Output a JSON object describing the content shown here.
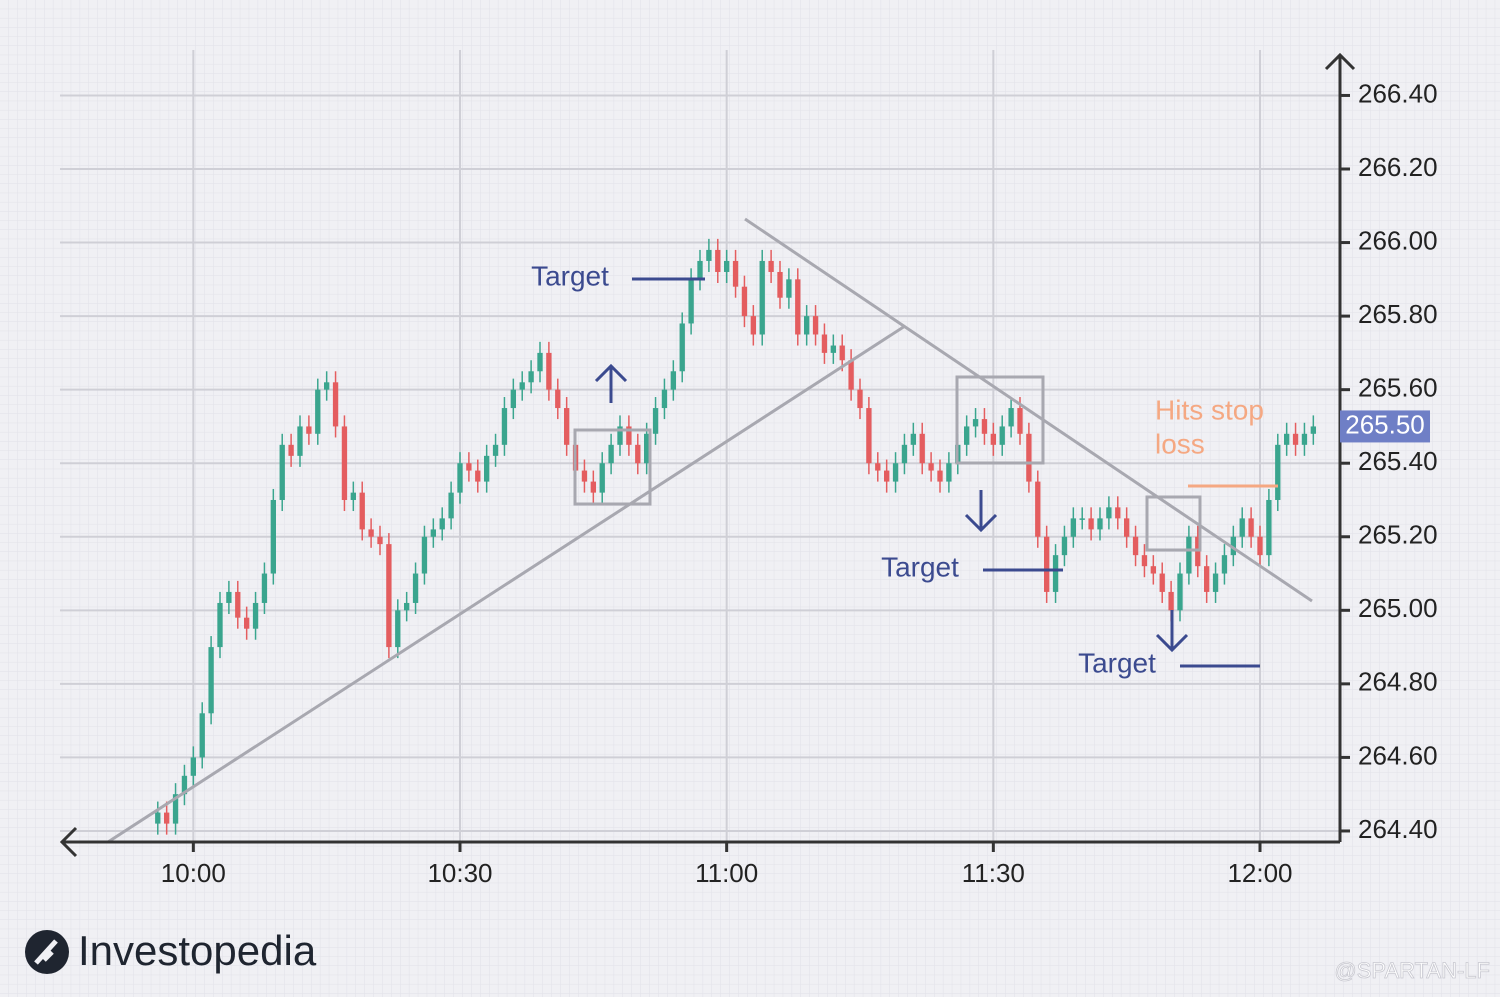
{
  "chart_data": {
    "type": "candlestick",
    "xlim": [
      585,
      729
    ],
    "xticks": [
      {
        "value": 600,
        "label": "10:00"
      },
      {
        "value": 630,
        "label": "10:30"
      },
      {
        "value": 660,
        "label": "11:00"
      },
      {
        "value": 690,
        "label": "11:30"
      },
      {
        "value": 720,
        "label": "12:00"
      }
    ],
    "ylim": [
      264.37,
      266.51
    ],
    "yticks": [
      {
        "value": 264.4,
        "label": "264.40"
      },
      {
        "value": 264.6,
        "label": "264.60"
      },
      {
        "value": 264.8,
        "label": "264.80"
      },
      {
        "value": 265.0,
        "label": "265.00"
      },
      {
        "value": 265.2,
        "label": "265.20"
      },
      {
        "value": 265.4,
        "label": "265.40"
      },
      {
        "value": 265.6,
        "label": "265.60"
      },
      {
        "value": 265.8,
        "label": "265.80"
      },
      {
        "value": 266.0,
        "label": "266.00"
      },
      {
        "value": 266.2,
        "label": "266.20"
      },
      {
        "value": 266.4,
        "label": "266.40"
      }
    ],
    "grid": true,
    "up_color": "#3aa58e",
    "down_color": "#e45d5f",
    "candles": {
      "x": [
        596,
        597,
        598,
        599,
        600,
        601,
        602,
        603,
        604,
        605,
        606,
        607,
        608,
        609,
        610,
        611,
        612,
        613,
        614,
        615,
        616,
        617,
        618,
        619,
        620,
        621,
        622,
        623,
        624,
        625,
        626,
        627,
        628,
        629,
        630,
        631,
        632,
        633,
        634,
        635,
        636,
        637,
        638,
        639,
        640,
        641,
        642,
        643,
        644,
        645,
        646,
        647,
        648,
        649,
        650,
        651,
        652,
        653,
        654,
        655,
        656,
        657,
        658,
        659,
        660,
        661,
        662,
        663,
        664,
        665,
        666,
        667,
        668,
        669,
        670,
        671,
        672,
        673,
        674,
        675,
        676,
        677,
        678,
        679,
        680,
        681,
        682,
        683,
        684,
        685,
        686,
        687,
        688,
        689,
        690,
        691,
        692,
        693,
        694,
        695,
        696,
        697,
        698,
        699,
        700,
        701,
        702,
        703,
        704,
        705,
        706,
        707,
        708,
        709,
        710,
        711,
        712,
        713,
        714,
        715,
        716,
        717,
        718,
        719,
        720,
        721,
        722,
        723,
        724,
        725,
        726
      ],
      "open": [
        264.42,
        264.45,
        264.42,
        264.5,
        264.55,
        264.6,
        264.72,
        264.9,
        265.02,
        265.05,
        264.98,
        264.95,
        265.02,
        265.1,
        265.3,
        265.45,
        265.42,
        265.5,
        265.48,
        265.6,
        265.62,
        265.5,
        265.3,
        265.32,
        265.22,
        265.2,
        265.18,
        264.9,
        265.0,
        265.02,
        265.1,
        265.2,
        265.22,
        265.25,
        265.32,
        265.4,
        265.38,
        265.35,
        265.42,
        265.45,
        265.55,
        265.6,
        265.62,
        265.65,
        265.7,
        265.6,
        265.55,
        265.45,
        265.38,
        265.35,
        265.32,
        265.4,
        265.45,
        265.5,
        265.45,
        265.4,
        265.48,
        265.55,
        265.6,
        265.65,
        265.78,
        265.9,
        265.95,
        265.98,
        265.92,
        265.95,
        265.88,
        265.8,
        265.75,
        265.95,
        265.92,
        265.85,
        265.9,
        265.75,
        265.8,
        265.75,
        265.7,
        265.72,
        265.68,
        265.6,
        265.55,
        265.4,
        265.38,
        265.35,
        265.4,
        265.45,
        265.48,
        265.4,
        265.38,
        265.35,
        265.4,
        265.45,
        265.5,
        265.52,
        265.48,
        265.45,
        265.5,
        265.55,
        265.48,
        265.35,
        265.2,
        265.05,
        265.15,
        265.2,
        265.25,
        265.25,
        265.22,
        265.25,
        265.28,
        265.25,
        265.2,
        265.15,
        265.12,
        265.1,
        265.05,
        265.0,
        265.1,
        265.2,
        265.12,
        265.05,
        265.1,
        265.15,
        265.2,
        265.25,
        265.2,
        265.15,
        265.3,
        265.45,
        265.48,
        265.45,
        265.48
      ],
      "high": [
        264.48,
        264.48,
        264.53,
        264.58,
        264.63,
        264.75,
        264.93,
        265.05,
        265.08,
        265.08,
        265.01,
        265.05,
        265.13,
        265.33,
        265.48,
        265.48,
        265.53,
        265.53,
        265.63,
        265.65,
        265.65,
        265.53,
        265.35,
        265.35,
        265.25,
        265.23,
        265.21,
        265.03,
        265.05,
        265.13,
        265.23,
        265.25,
        265.28,
        265.35,
        265.43,
        265.43,
        265.41,
        265.45,
        265.48,
        265.58,
        265.63,
        265.65,
        265.68,
        265.73,
        265.73,
        265.63,
        265.58,
        265.48,
        265.41,
        265.38,
        265.43,
        265.48,
        265.53,
        265.53,
        265.48,
        265.51,
        265.58,
        265.63,
        265.68,
        265.81,
        265.93,
        265.98,
        266.01,
        266.01,
        265.98,
        265.98,
        265.91,
        265.83,
        265.98,
        265.98,
        265.95,
        265.93,
        265.93,
        265.83,
        265.83,
        265.78,
        265.75,
        265.75,
        265.71,
        265.63,
        265.58,
        265.43,
        265.41,
        265.43,
        265.48,
        265.51,
        265.51,
        265.43,
        265.41,
        265.43,
        265.48,
        265.53,
        265.55,
        265.55,
        265.51,
        265.53,
        265.58,
        265.58,
        265.51,
        265.38,
        265.23,
        265.18,
        265.23,
        265.28,
        265.28,
        265.28,
        265.28,
        265.31,
        265.31,
        265.28,
        265.23,
        265.18,
        265.15,
        265.13,
        265.08,
        265.13,
        265.23,
        265.23,
        265.15,
        265.13,
        265.18,
        265.23,
        265.28,
        265.28,
        265.23,
        265.33,
        265.48,
        265.51,
        265.51,
        265.51,
        265.53
      ],
      "low": [
        264.39,
        264.39,
        264.39,
        264.47,
        264.52,
        264.57,
        264.69,
        264.87,
        264.99,
        264.95,
        264.92,
        264.92,
        264.99,
        265.07,
        265.27,
        265.39,
        265.39,
        265.45,
        265.45,
        265.57,
        265.47,
        265.27,
        265.27,
        265.19,
        265.17,
        265.15,
        264.87,
        264.87,
        264.97,
        264.99,
        265.07,
        265.17,
        265.19,
        265.22,
        265.29,
        265.35,
        265.32,
        265.32,
        265.39,
        265.42,
        265.52,
        265.57,
        265.59,
        265.62,
        265.57,
        265.52,
        265.42,
        265.35,
        265.32,
        265.29,
        265.29,
        265.37,
        265.42,
        265.42,
        265.37,
        265.37,
        265.45,
        265.52,
        265.57,
        265.62,
        265.75,
        265.87,
        265.92,
        265.89,
        265.89,
        265.85,
        265.77,
        265.72,
        265.72,
        265.89,
        265.82,
        265.82,
        265.72,
        265.72,
        265.72,
        265.67,
        265.67,
        265.65,
        265.57,
        265.52,
        265.37,
        265.35,
        265.32,
        265.32,
        265.37,
        265.42,
        265.37,
        265.35,
        265.32,
        265.32,
        265.37,
        265.42,
        265.47,
        265.45,
        265.42,
        265.42,
        265.47,
        265.45,
        265.32,
        265.17,
        265.02,
        265.02,
        265.12,
        265.17,
        265.22,
        265.19,
        265.19,
        265.22,
        265.22,
        265.17,
        265.12,
        265.09,
        265.07,
        265.02,
        264.97,
        264.97,
        265.07,
        265.09,
        265.02,
        265.02,
        265.07,
        265.12,
        265.17,
        265.17,
        265.12,
        265.12,
        265.27,
        265.42,
        265.42,
        265.42,
        265.45
      ],
      "close": [
        264.45,
        264.42,
        264.5,
        264.55,
        264.6,
        264.72,
        264.9,
        265.02,
        265.05,
        264.98,
        264.95,
        265.02,
        265.1,
        265.3,
        265.45,
        265.42,
        265.5,
        265.48,
        265.6,
        265.62,
        265.5,
        265.3,
        265.32,
        265.22,
        265.2,
        265.18,
        264.9,
        265.0,
        265.02,
        265.1,
        265.2,
        265.22,
        265.25,
        265.32,
        265.4,
        265.38,
        265.35,
        265.42,
        265.45,
        265.55,
        265.6,
        265.62,
        265.65,
        265.7,
        265.6,
        265.55,
        265.45,
        265.38,
        265.35,
        265.32,
        265.4,
        265.45,
        265.5,
        265.45,
        265.4,
        265.48,
        265.55,
        265.6,
        265.65,
        265.78,
        265.9,
        265.95,
        265.98,
        265.92,
        265.95,
        265.88,
        265.8,
        265.75,
        265.95,
        265.92,
        265.85,
        265.9,
        265.75,
        265.8,
        265.75,
        265.7,
        265.72,
        265.68,
        265.6,
        265.55,
        265.4,
        265.38,
        265.35,
        265.4,
        265.45,
        265.48,
        265.4,
        265.38,
        265.35,
        265.4,
        265.45,
        265.5,
        265.52,
        265.48,
        265.45,
        265.5,
        265.55,
        265.48,
        265.35,
        265.2,
        265.05,
        265.15,
        265.2,
        265.25,
        265.25,
        265.22,
        265.25,
        265.28,
        265.25,
        265.2,
        265.15,
        265.12,
        265.1,
        265.05,
        265.0,
        265.1,
        265.2,
        265.12,
        265.05,
        265.1,
        265.15,
        265.2,
        265.25,
        265.2,
        265.15,
        265.3,
        265.45,
        265.48,
        265.45,
        265.48,
        265.5
      ]
    },
    "last_price": {
      "value": 265.5,
      "label": "265.50"
    },
    "annotations": {
      "target_1": "Target",
      "target_2": "Target",
      "target_3": "Target",
      "stop_loss_1": "Hits stop",
      "stop_loss_2": "loss"
    },
    "logo": "Investopedia",
    "watermark": "@SPARTAN-LF"
  }
}
